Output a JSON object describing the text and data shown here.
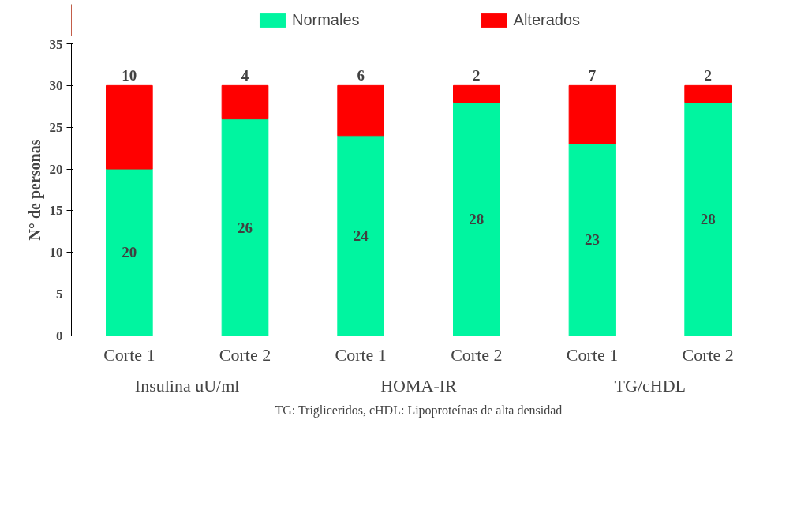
{
  "chart_data": {
    "type": "bar",
    "stacked": true,
    "ylabel": "N° de personas",
    "categories": [
      "Corte 1",
      "Corte 2",
      "Corte 1",
      "Corte 2",
      "Corte 1",
      "Corte 2"
    ],
    "series": [
      {
        "name": "Normales",
        "color": "#00f5a0",
        "values": [
          20,
          26,
          24,
          28,
          23,
          28
        ]
      },
      {
        "name": "Alterados",
        "color": "#ff0000",
        "values": [
          10,
          4,
          6,
          2,
          7,
          2
        ]
      }
    ],
    "ylim": [
      0,
      35
    ],
    "yticks": [
      0,
      5,
      10,
      15,
      20,
      25,
      30,
      35
    ],
    "grid": false,
    "legend": "top",
    "data_labels": true,
    "annotations": [
      "Insulina uU/ml",
      "HOMA-IR",
      "TG/cHDL",
      "TG: Trigliceridos, cHDL: Lipoproteínas de alta densidad"
    ]
  }
}
